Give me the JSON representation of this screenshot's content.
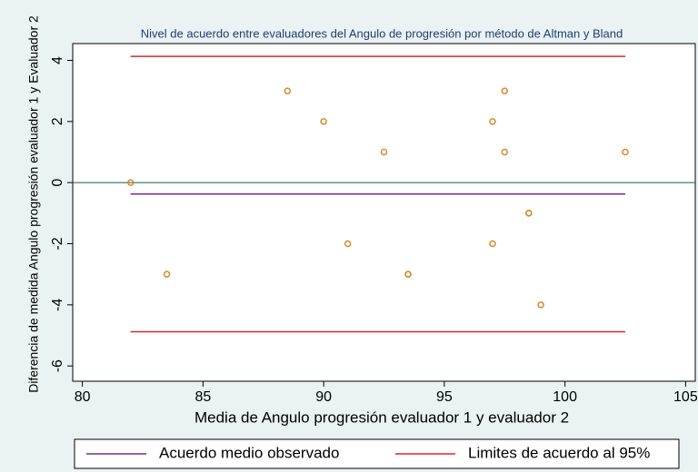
{
  "chart_data": {
    "type": "scatter",
    "title": "Nivel de acuerdo entre evaluadores del Angulo de progresión por método de Altman y Bland",
    "x_label": "Media de Angulo progresión evaluador 1 y evaluador 2",
    "y_label": "Diferencia de medida Angulo progresión evaluador 1 y Evaluador 2",
    "xlim": [
      79.6,
      105.4
    ],
    "ylim": [
      -6.5,
      4.55
    ],
    "xticks": [
      80,
      85,
      90,
      95,
      100,
      105
    ],
    "yticks": [
      -6,
      -4,
      -2,
      0,
      2,
      4
    ],
    "points": {
      "color": "#d9882a",
      "x": [
        82,
        83.5,
        88.5,
        90,
        91,
        92.5,
        93.5,
        93.5,
        97,
        97.5,
        97.5,
        97,
        98.5,
        98.5,
        99,
        102.5
      ],
      "y": [
        0,
        -3,
        3,
        2,
        -2,
        1,
        -3,
        -3,
        2,
        3,
        1,
        -2,
        -1,
        -1,
        -4,
        1
      ]
    },
    "zero_line": {
      "value": 0,
      "color": "#2f6b6b"
    },
    "lines": [
      {
        "name": "Acuerdo  medio observado",
        "color": "#7b2a8a",
        "values": [
          -0.375
        ],
        "x": [
          82,
          102.5
        ]
      },
      {
        "name": "Limites de acuerdo al 95%",
        "color": "#d42a2a",
        "values": [
          4.13,
          -4.88
        ],
        "x": [
          82,
          102.5
        ]
      }
    ]
  }
}
